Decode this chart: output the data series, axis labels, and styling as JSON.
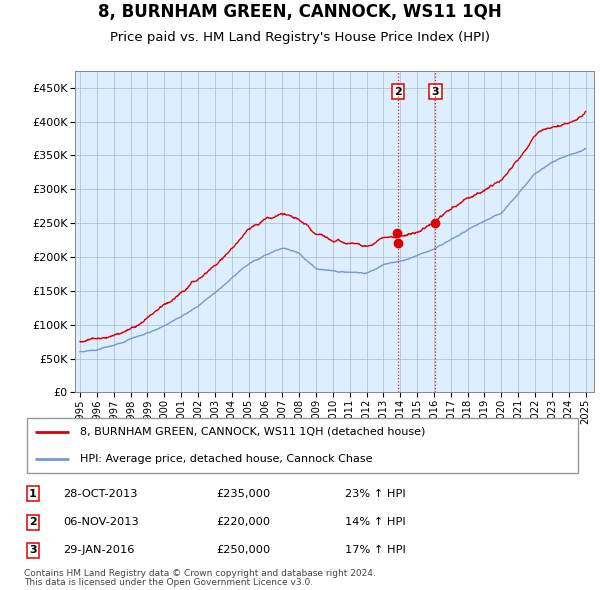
{
  "title": "8, BURNHAM GREEN, CANNOCK, WS11 1QH",
  "subtitle": "Price paid vs. HM Land Registry's House Price Index (HPI)",
  "title_fontsize": 12,
  "subtitle_fontsize": 9.5,
  "ytick_values": [
    0,
    50000,
    100000,
    150000,
    200000,
    250000,
    300000,
    350000,
    400000,
    450000
  ],
  "ylim": [
    0,
    475000
  ],
  "xlim_start": 1994.7,
  "xlim_end": 2025.5,
  "xtick_years": [
    1995,
    1996,
    1997,
    1998,
    1999,
    2000,
    2001,
    2002,
    2003,
    2004,
    2005,
    2006,
    2007,
    2008,
    2009,
    2010,
    2011,
    2012,
    2013,
    2014,
    2015,
    2016,
    2017,
    2018,
    2019,
    2020,
    2021,
    2022,
    2023,
    2024,
    2025
  ],
  "red_color": "#dd0000",
  "blue_color": "#7799cc",
  "dashed_color": "#dd0000",
  "chart_bg_color": "#ddeeff",
  "background_color": "#ffffff",
  "grid_color": "#aabbcc",
  "legend_label_red": "8, BURNHAM GREEN, CANNOCK, WS11 1QH (detached house)",
  "legend_label_blue": "HPI: Average price, detached house, Cannock Chase",
  "transactions": [
    {
      "id": 1,
      "date": "28-OCT-2013",
      "year": 2013.82,
      "price": 235000,
      "show_vline": false,
      "show_dot": true
    },
    {
      "id": 2,
      "date": "06-NOV-2013",
      "year": 2013.87,
      "price": 220000,
      "show_vline": true,
      "show_dot": true
    },
    {
      "id": 3,
      "date": "29-JAN-2016",
      "year": 2016.08,
      "price": 250000,
      "show_vline": true,
      "show_dot": true
    }
  ],
  "table_rows": [
    {
      "id": 1,
      "date": "28-OCT-2013",
      "price": "£235,000",
      "pct": "23% ↑ HPI"
    },
    {
      "id": 2,
      "date": "06-NOV-2013",
      "price": "£220,000",
      "pct": "14% ↑ HPI"
    },
    {
      "id": 3,
      "date": "29-JAN-2016",
      "price": "£250,000",
      "pct": "17% ↑ HPI"
    }
  ],
  "footer_line1": "Contains HM Land Registry data © Crown copyright and database right 2024.",
  "footer_line2": "This data is licensed under the Open Government Licence v3.0."
}
